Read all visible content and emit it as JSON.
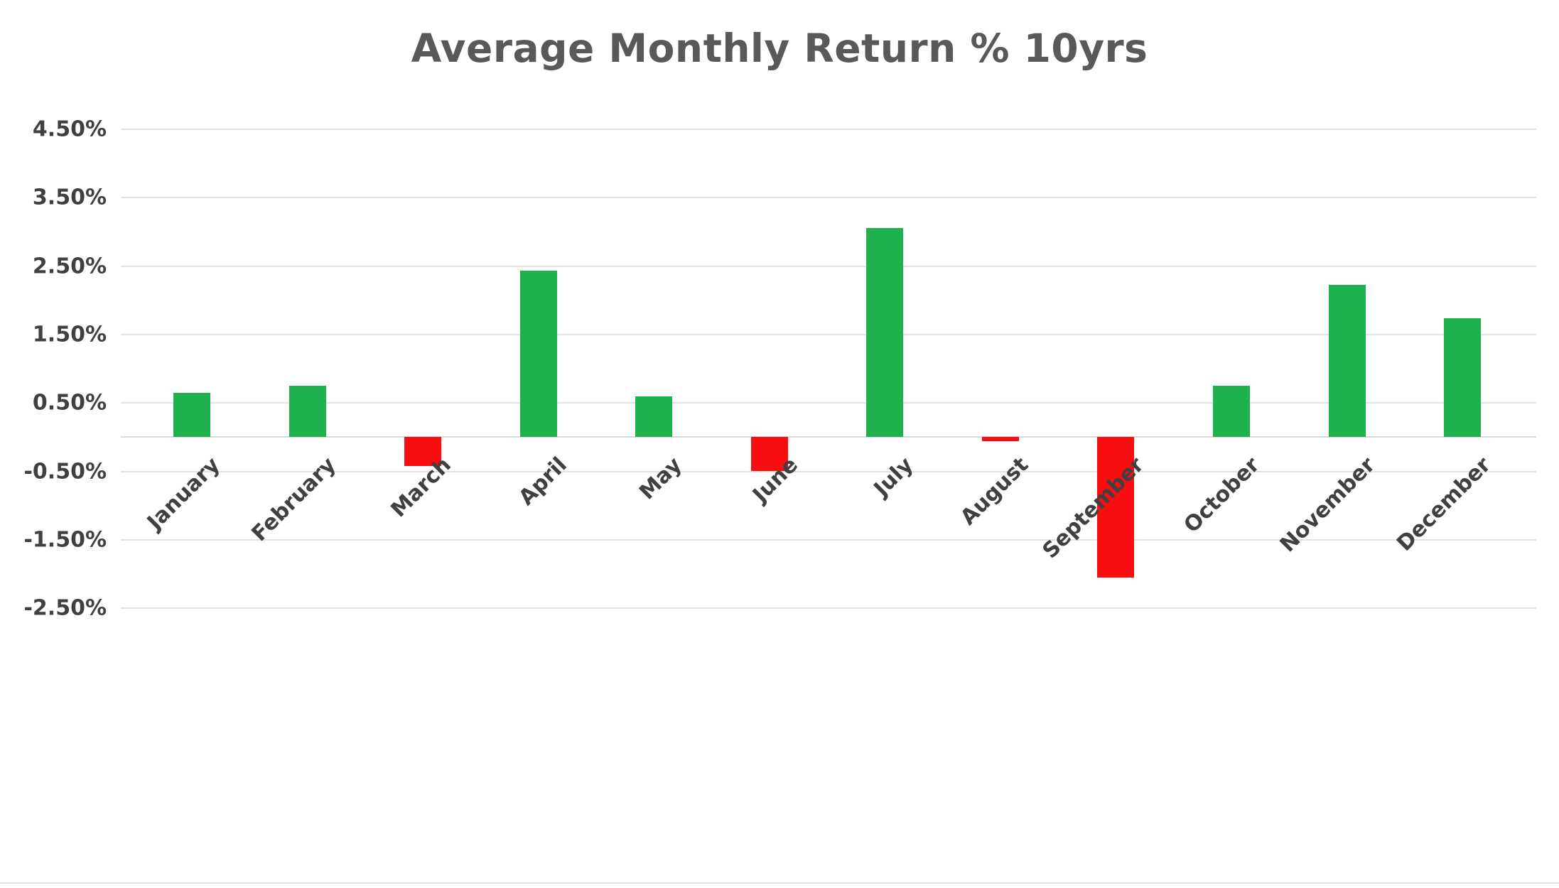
{
  "chart_data": {
    "type": "bar",
    "title": "Average Monthly Return % 10yrs",
    "categories": [
      "January",
      "February",
      "March",
      "April",
      "May",
      "June",
      "July",
      "August",
      "September",
      "October",
      "November",
      "December"
    ],
    "values": [
      0.65,
      0.75,
      -0.42,
      2.43,
      0.6,
      -0.5,
      3.06,
      -0.06,
      -2.05,
      0.75,
      2.23,
      1.74
    ],
    "xlabel": "",
    "ylabel": "",
    "ylim": [
      -2.5,
      4.5
    ],
    "ytick_interval": 1.0,
    "yticks": [
      {
        "value": 4.5,
        "label": "4.50%"
      },
      {
        "value": 3.5,
        "label": "3.50%"
      },
      {
        "value": 2.5,
        "label": "2.50%"
      },
      {
        "value": 1.5,
        "label": "1.50%"
      },
      {
        "value": 0.5,
        "label": "0.50%"
      },
      {
        "value": -0.5,
        "label": "-0.50%"
      },
      {
        "value": -1.5,
        "label": "-1.50%"
      },
      {
        "value": -2.5,
        "label": "-2.50%"
      }
    ],
    "grid": true,
    "legend": false,
    "x_label_rotation_deg": -45,
    "bar_colors": {
      "positive": "#1fb14e",
      "negative": "#f80d10"
    }
  },
  "colors": {
    "title": "#595959",
    "axis_labels": "#404040",
    "gridline": "#e2e2e2",
    "zero_axis_line": "#d9d9d9",
    "background": "#ffffff"
  }
}
